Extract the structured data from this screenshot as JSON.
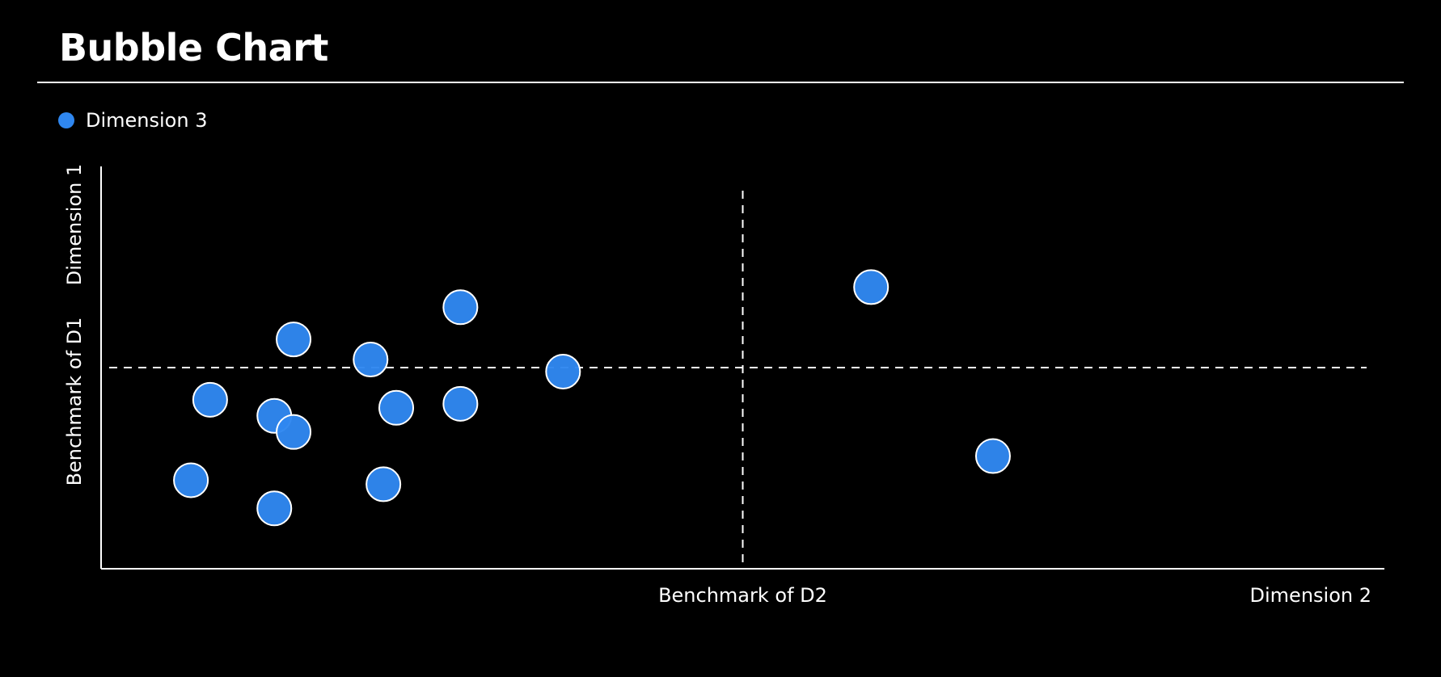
{
  "page": {
    "title": "Bubble Chart"
  },
  "legend": {
    "label": "Dimension 3",
    "color": "#2f87f0"
  },
  "chart_data": {
    "type": "scatter",
    "title": "Bubble Chart",
    "xlabel": "Dimension 2",
    "ylabel": "Dimension 1",
    "x_benchmark_label": "Benchmark of D2",
    "y_benchmark_label": "Benchmark of D1",
    "xlim": [
      0,
      100
    ],
    "ylim": [
      0,
      100
    ],
    "x_benchmark": 50,
    "y_benchmark": 50,
    "grid": false,
    "legend_position": "top-left",
    "series": [
      {
        "name": "Dimension 3",
        "color": "#2f87f0",
        "points": [
          {
            "x": 7,
            "y": 22
          },
          {
            "x": 8.5,
            "y": 42
          },
          {
            "x": 13.5,
            "y": 15
          },
          {
            "x": 13.5,
            "y": 38
          },
          {
            "x": 15,
            "y": 34
          },
          {
            "x": 15,
            "y": 57
          },
          {
            "x": 21,
            "y": 52
          },
          {
            "x": 22,
            "y": 21
          },
          {
            "x": 23,
            "y": 40
          },
          {
            "x": 28,
            "y": 65
          },
          {
            "x": 28,
            "y": 41
          },
          {
            "x": 36,
            "y": 49
          },
          {
            "x": 60,
            "y": 70
          },
          {
            "x": 69.5,
            "y": 28
          }
        ]
      }
    ]
  }
}
